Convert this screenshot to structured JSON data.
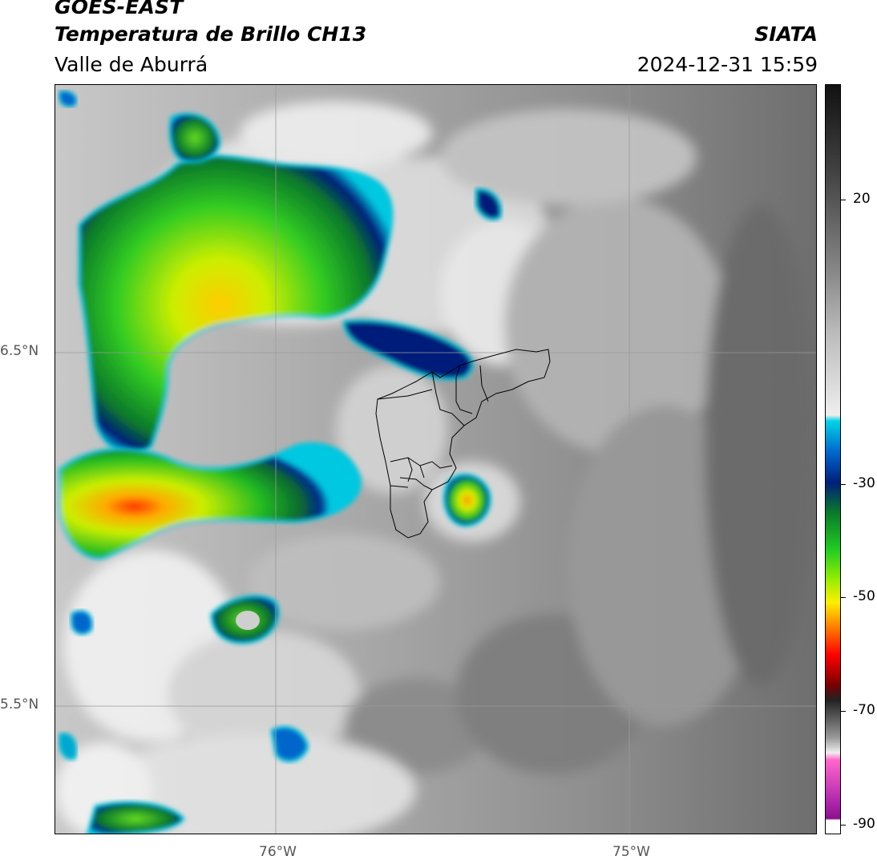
{
  "header": {
    "satellite": "GOES-EAST",
    "product": "Temperatura de Brillo CH13",
    "region": "Valle de Aburrá",
    "organization": "SIATA",
    "timestamp": "2024-12-31 15:59"
  },
  "axes": {
    "lat_labels": [
      "6.5°N",
      "5.5°N"
    ],
    "lon_labels": [
      "76°W",
      "75°W"
    ]
  },
  "colorbar": {
    "ticks": [
      "20",
      "-30",
      "-50",
      "-70",
      "-90"
    ],
    "units_hint": "brightness temperature °C",
    "scale_colors": [
      "#111111",
      "#444444",
      "#888888",
      "#bbbbbb",
      "#eeeeee",
      "#00d4e8",
      "#0066cc",
      "#001f7a",
      "#0a7a2a",
      "#22cc22",
      "#99ee00",
      "#ffee00",
      "#ff8800",
      "#ff0000",
      "#7a0000",
      "#222222",
      "#999999",
      "#ff66cc",
      "#aa22aa",
      "#ffffff"
    ]
  }
}
